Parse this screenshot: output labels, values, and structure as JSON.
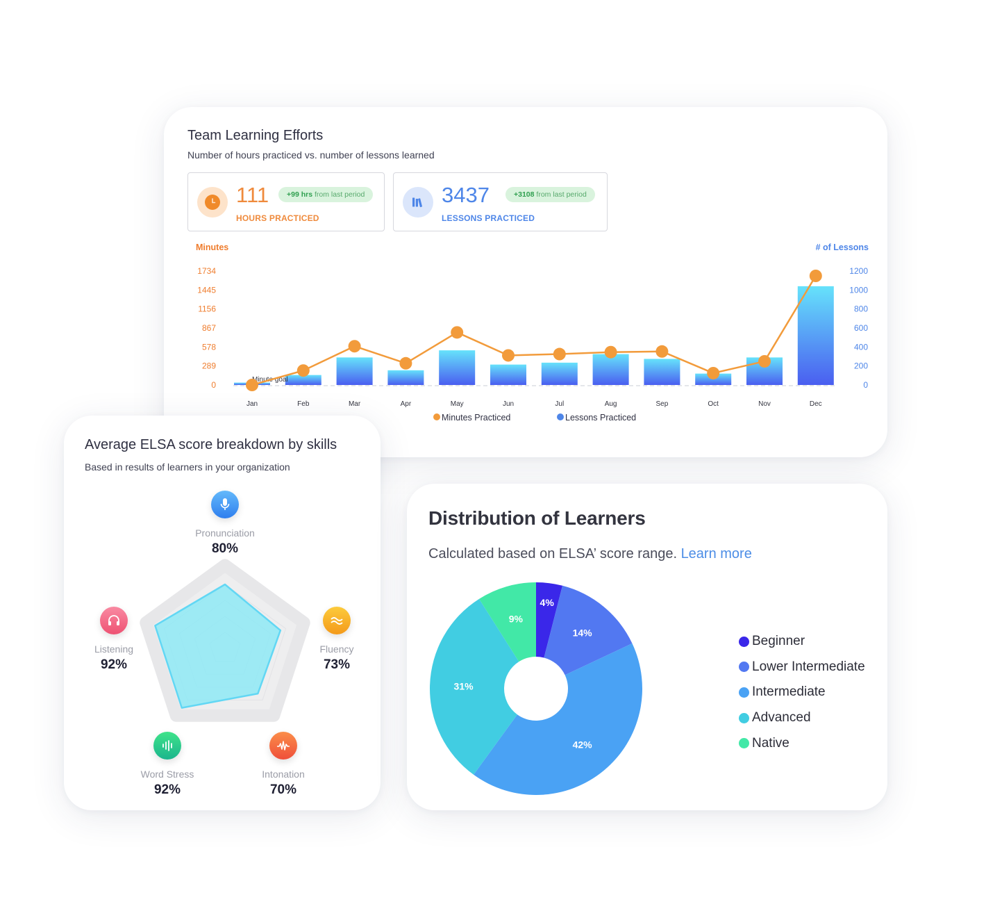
{
  "efforts": {
    "title": "Team Learning Efforts",
    "subtitle": "Number of hours practiced vs. number of lessons learned",
    "hours": {
      "value": "111",
      "label": "HOURS PRACTICED",
      "badge_bold": "+99 hrs",
      "badge_rest": "from last period",
      "icon": "clock-icon",
      "color": "#ef8a3c"
    },
    "lessons": {
      "value": "3437",
      "label": "LESSONS PRACTICED",
      "badge_bold": "+3108",
      "badge_rest": "from last period",
      "icon": "books-icon",
      "color": "#4e86e8"
    }
  },
  "skills": {
    "title": "Average ELSA score breakdown by skills",
    "subtitle": "Based in results of learners in your organization",
    "items": [
      {
        "name": "Pronunciation",
        "value": "80%",
        "icon": "microphone-icon",
        "color": "#3c8ef0"
      },
      {
        "name": "Fluency",
        "value": "73%",
        "icon": "waves-icon",
        "color": "#f5a623"
      },
      {
        "name": "Intonation",
        "value": "70%",
        "icon": "intonation-wave-icon",
        "color": "#f16a3f"
      },
      {
        "name": "Word Stress",
        "value": "92%",
        "icon": "sound-bars-icon",
        "color": "#2fcf8e"
      },
      {
        "name": "Listening",
        "value": "92%",
        "icon": "headphones-icon",
        "color": "#f1678a"
      }
    ]
  },
  "distribution": {
    "title": "Distribution of Learners",
    "subtitle": "Calculated based on ELSA’ score range.",
    "link": "Learn more"
  },
  "chart_data": [
    {
      "type": "bar",
      "title": "Team Learning Efforts",
      "categories": [
        "Jan",
        "Feb",
        "Mar",
        "Apr",
        "May",
        "Jun",
        "Jul",
        "Aug",
        "Sep",
        "Oct",
        "Nov",
        "Dec"
      ],
      "series": [
        {
          "name": "Minutes Practiced",
          "type": "line",
          "axis": "left",
          "color": "#f29b3b",
          "values": [
            0,
            220,
            590,
            330,
            800,
            450,
            470,
            500,
            510,
            180,
            360,
            1660
          ]
        },
        {
          "name": "Lessons Practiced",
          "type": "bar",
          "axis": "right",
          "color": "#4e6ef2",
          "values": [
            25,
            105,
            290,
            155,
            365,
            215,
            235,
            325,
            275,
            120,
            290,
            1040
          ]
        }
      ],
      "ylabel_left": "Minutes",
      "ylabel_right": "# of Lessons",
      "yticks_left": [
        "1734",
        "1445",
        "1156",
        "867",
        "578",
        "289",
        "0"
      ],
      "yticks_right": [
        "1200",
        "1000",
        "800",
        "600",
        "400",
        "200",
        "0"
      ],
      "ylim_left": [
        0,
        1734
      ],
      "ylim_right": [
        0,
        1200
      ],
      "goal_label": "Minute goal",
      "goal_value": 0,
      "legend": [
        "Minutes Practiced",
        "Lessons Practiced"
      ],
      "legend_position": "bottom"
    },
    {
      "type": "radar",
      "axes": [
        "Pronunciation",
        "Fluency",
        "Intonation",
        "Word Stress",
        "Listening"
      ],
      "values": [
        80,
        73,
        70,
        92,
        92
      ],
      "range": [
        0,
        100
      ],
      "color": "#5bd8f0"
    },
    {
      "type": "pie",
      "title": "Distribution of Learners",
      "labels": [
        "Beginner",
        "Lower Intermediate",
        "Intermediate",
        "Advanced",
        "Native"
      ],
      "values": [
        4,
        14,
        42,
        31,
        9
      ],
      "value_labels": [
        "4%",
        "14%",
        "42%",
        "31%",
        "9%"
      ],
      "colors": [
        "#3a27e9",
        "#5278f1",
        "#4aa2f4",
        "#41cde2",
        "#42e8a7"
      ],
      "donut": true,
      "legend_position": "right"
    }
  ]
}
